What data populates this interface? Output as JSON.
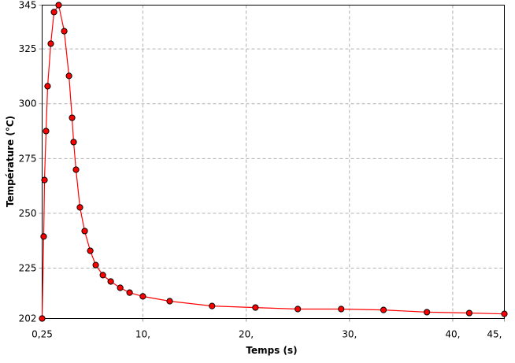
{
  "chart_data": {
    "type": "line",
    "title": "",
    "xlabel": "Temps (s)",
    "ylabel": "Température (°C)",
    "xlim": [
      0.25,
      45
    ],
    "ylim": [
      202,
      345
    ],
    "grid": true,
    "x_ticks": [
      {
        "v": 0.25,
        "label": "0,25"
      },
      {
        "v": 10,
        "label": "10,"
      },
      {
        "v": 20,
        "label": "20,"
      },
      {
        "v": 30,
        "label": "30,"
      },
      {
        "v": 40,
        "label": "40,"
      },
      {
        "v": 45,
        "label": "45,"
      }
    ],
    "y_ticks": [
      {
        "v": 202,
        "label": "202"
      },
      {
        "v": 225,
        "label": "225"
      },
      {
        "v": 250,
        "label": "250"
      },
      {
        "v": 275,
        "label": "275"
      },
      {
        "v": 300,
        "label": "300"
      },
      {
        "v": 325,
        "label": "325"
      },
      {
        "v": 345,
        "label": "345"
      }
    ],
    "series_color": "#ff0000",
    "marker_color": "#ff0000",
    "series": [
      {
        "name": "Température",
        "x": [
          0.25,
          0.4,
          0.48,
          0.63,
          0.78,
          1.09,
          1.4,
          1.85,
          2.39,
          2.85,
          3.15,
          3.3,
          3.53,
          3.91,
          4.37,
          4.91,
          5.44,
          6.13,
          6.89,
          7.81,
          8.72,
          10.0,
          12.6,
          16.7,
          20.9,
          25.0,
          29.2,
          33.3,
          37.5,
          41.6,
          45.0
        ],
        "y": [
          202,
          239.4,
          265.2,
          287.5,
          308,
          327.4,
          341.8,
          345,
          333.1,
          312.7,
          293.6,
          282.5,
          269.9,
          252.7,
          241.9,
          232.9,
          226.4,
          221.8,
          218.9,
          216,
          213.8,
          212.1,
          209.9,
          207.7,
          207,
          206.3,
          206.3,
          205.9,
          204.9,
          204.5,
          204.1
        ]
      }
    ]
  }
}
